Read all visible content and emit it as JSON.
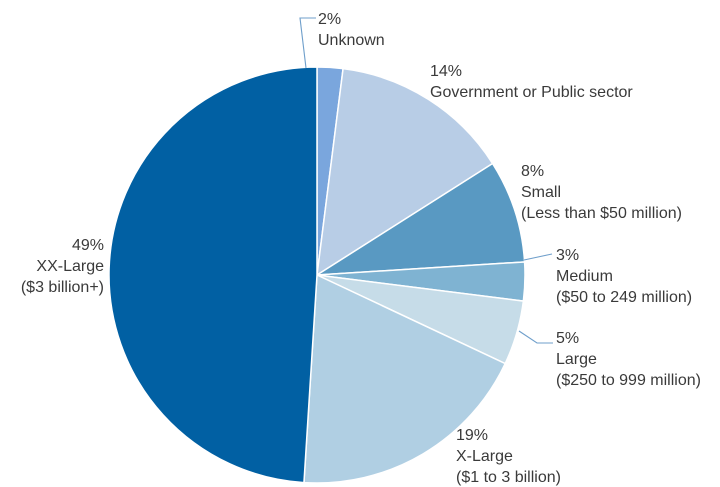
{
  "chart_data": {
    "type": "pie",
    "title": "",
    "start_angle_deg": -90,
    "direction": "clockwise",
    "slices": [
      {
        "label": "Unknown",
        "sublabel": "",
        "value": 2,
        "value_text": "2%",
        "color": "#7aa6dd"
      },
      {
        "label": "Government or Public sector",
        "sublabel": "",
        "value": 14,
        "value_text": "14%",
        "color": "#b8cde6"
      },
      {
        "label": "Small",
        "sublabel": "(Less than $50 million)",
        "value": 8,
        "value_text": "8%",
        "color": "#5999c2"
      },
      {
        "label": "Medium",
        "sublabel": "($50 to 249 million)",
        "value": 3,
        "value_text": "3%",
        "color": "#7fb3d2"
      },
      {
        "label": "Large",
        "sublabel": "($250 to 999 million)",
        "value": 5,
        "value_text": "5%",
        "color": "#c6dce8"
      },
      {
        "label": "X-Large",
        "sublabel": "($1 to 3 billion)",
        "value": 19,
        "value_text": "19%",
        "color": "#b0cfe3"
      },
      {
        "label": "XX-Large",
        "sublabel": "($3 billion+)",
        "value": 49,
        "value_text": "49%",
        "color": "#0160a3"
      }
    ]
  }
}
